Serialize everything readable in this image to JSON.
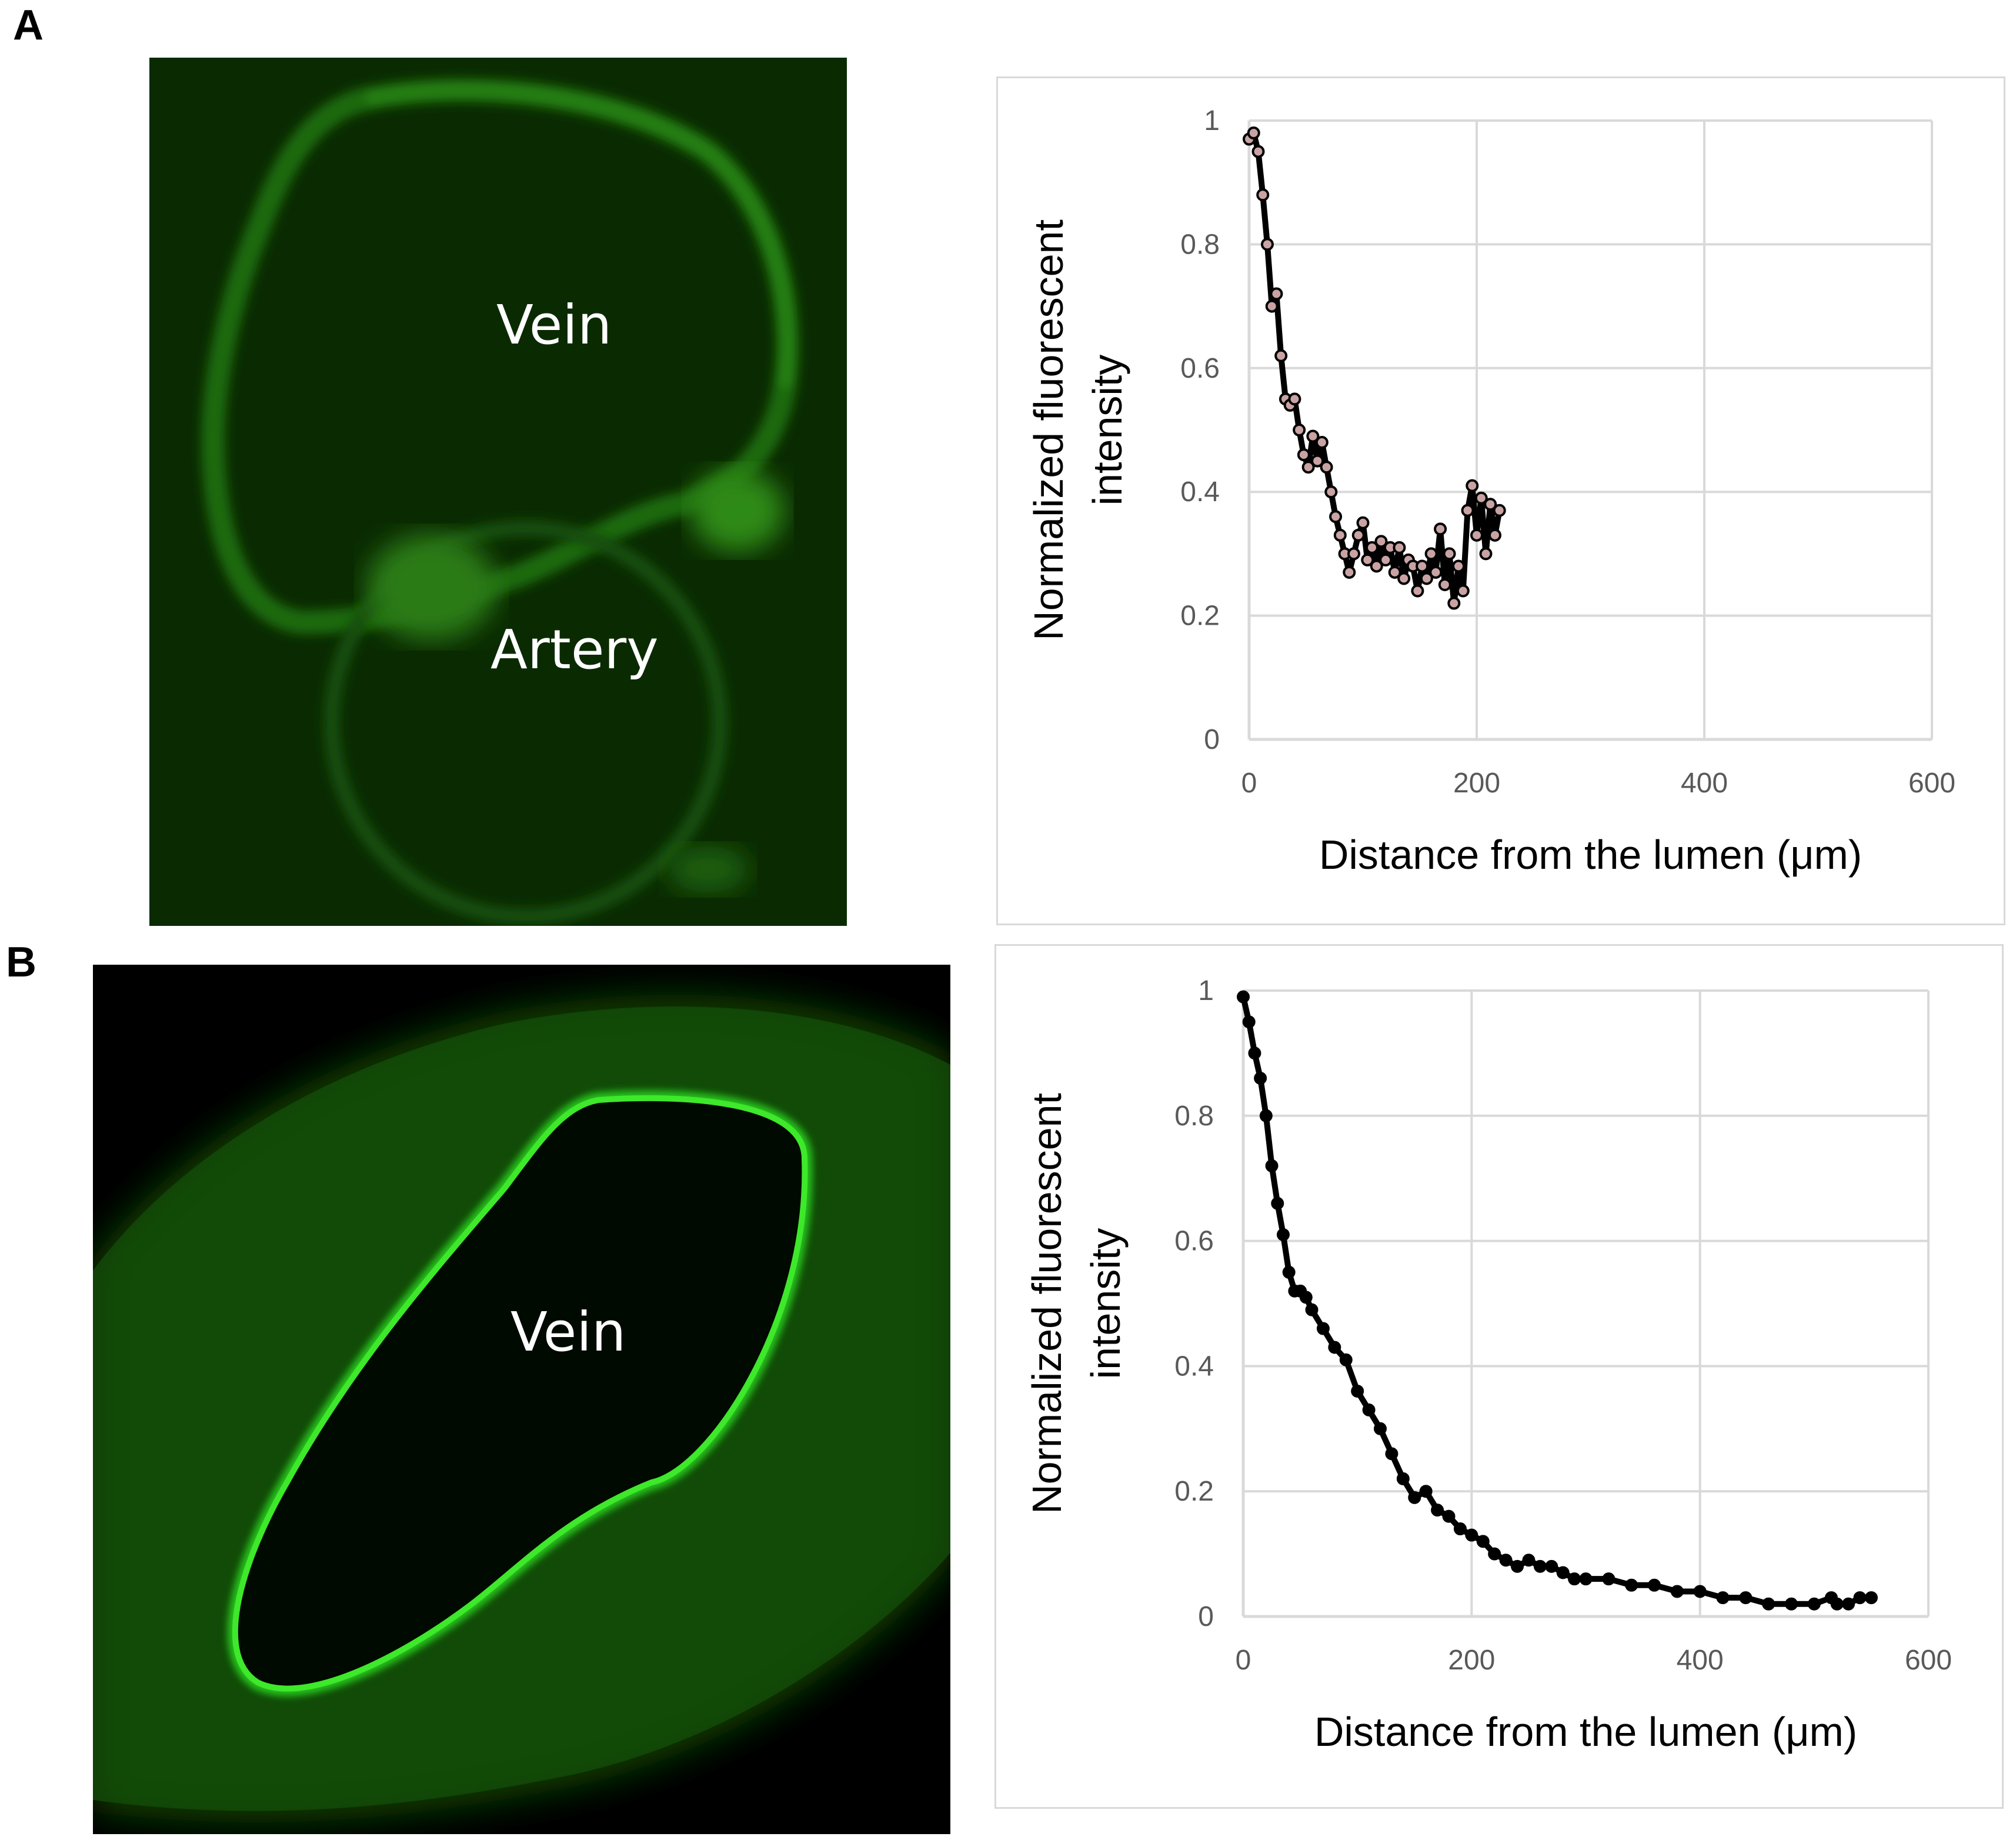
{
  "panels": [
    {
      "letter": "A",
      "image_labels": [
        "Vein",
        "Artery"
      ],
      "chart_data": {
        "type": "scatter",
        "xlabel": "Distance from the lumen (μm)",
        "ylabel_lines": [
          "Normalized fluorescent",
          "intensity"
        ],
        "xlim": [
          0,
          600
        ],
        "ylim": [
          0,
          1
        ],
        "xticks": [
          "0",
          "200",
          "400",
          "600"
        ],
        "yticks": [
          "0",
          "0.2",
          "0.4",
          "0.6",
          "0.8",
          "1"
        ],
        "grid": true,
        "marker_color": "#c9a3a3",
        "x": [
          0,
          4,
          8,
          12,
          16,
          20,
          24,
          28,
          32,
          36,
          40,
          44,
          48,
          52,
          56,
          60,
          64,
          68,
          72,
          76,
          80,
          84,
          88,
          92,
          96,
          100,
          104,
          108,
          112,
          116,
          120,
          124,
          128,
          132,
          136,
          140,
          144,
          148,
          152,
          156,
          160,
          164,
          168,
          172,
          176,
          180,
          184,
          188,
          192,
          196,
          200,
          204,
          208,
          212,
          216,
          220
        ],
        "y": [
          0.97,
          0.98,
          0.95,
          0.88,
          0.8,
          0.7,
          0.72,
          0.62,
          0.55,
          0.54,
          0.55,
          0.5,
          0.46,
          0.44,
          0.49,
          0.45,
          0.48,
          0.44,
          0.4,
          0.36,
          0.33,
          0.3,
          0.27,
          0.3,
          0.33,
          0.35,
          0.29,
          0.31,
          0.28,
          0.32,
          0.29,
          0.31,
          0.27,
          0.31,
          0.26,
          0.29,
          0.28,
          0.24,
          0.28,
          0.26,
          0.3,
          0.27,
          0.34,
          0.25,
          0.3,
          0.22,
          0.28,
          0.24,
          0.37,
          0.41,
          0.33,
          0.39,
          0.3,
          0.38,
          0.33,
          0.37
        ]
      }
    },
    {
      "letter": "B",
      "image_labels": [
        "Vein"
      ],
      "chart_data": {
        "type": "scatter",
        "xlabel": "Distance from the lumen (μm)",
        "ylabel_lines": [
          "Normalized fluorescent",
          "intensity"
        ],
        "xlim": [
          0,
          600
        ],
        "ylim": [
          0,
          1
        ],
        "xticks": [
          "0",
          "200",
          "400",
          "600"
        ],
        "yticks": [
          "0",
          "0.2",
          "0.4",
          "0.6",
          "0.8",
          "1"
        ],
        "grid": true,
        "marker_color": "#000000",
        "x": [
          0,
          5,
          10,
          15,
          20,
          25,
          30,
          35,
          40,
          45,
          50,
          55,
          60,
          70,
          80,
          90,
          100,
          110,
          120,
          130,
          140,
          150,
          160,
          170,
          180,
          190,
          200,
          210,
          220,
          230,
          240,
          250,
          260,
          270,
          280,
          290,
          300,
          320,
          340,
          360,
          380,
          400,
          420,
          440,
          460,
          480,
          500,
          515,
          520,
          530,
          540,
          550
        ],
        "y": [
          0.99,
          0.95,
          0.9,
          0.86,
          0.8,
          0.72,
          0.66,
          0.61,
          0.55,
          0.52,
          0.52,
          0.51,
          0.49,
          0.46,
          0.43,
          0.41,
          0.36,
          0.33,
          0.3,
          0.26,
          0.22,
          0.19,
          0.2,
          0.17,
          0.16,
          0.14,
          0.13,
          0.12,
          0.1,
          0.09,
          0.08,
          0.09,
          0.08,
          0.08,
          0.07,
          0.06,
          0.06,
          0.06,
          0.05,
          0.05,
          0.04,
          0.04,
          0.03,
          0.03,
          0.02,
          0.02,
          0.02,
          0.03,
          0.02,
          0.02,
          0.03,
          0.03
        ]
      }
    }
  ]
}
